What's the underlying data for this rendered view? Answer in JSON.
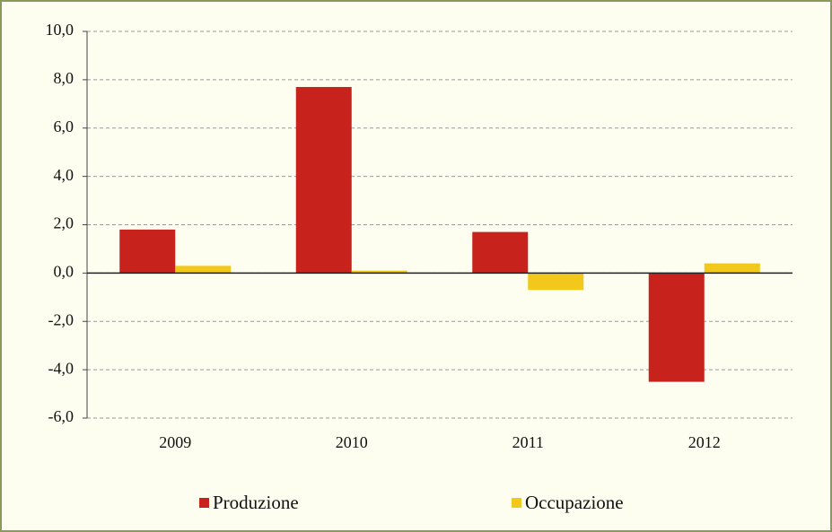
{
  "chart_data": {
    "type": "bar",
    "categories": [
      "2009",
      "2010",
      "2011",
      "2012"
    ],
    "series": [
      {
        "name": "Produzione",
        "color": "#c8221c",
        "values": [
          1.8,
          7.7,
          1.7,
          -4.5
        ]
      },
      {
        "name": "Occupazione",
        "color": "#f2c81c",
        "values": [
          0.3,
          0.1,
          -0.7,
          0.4
        ]
      }
    ],
    "ylim": [
      -6,
      10
    ],
    "yticks": [
      {
        "value": -6,
        "label": "-6,0"
      },
      {
        "value": -4,
        "label": "-4,0"
      },
      {
        "value": -2,
        "label": "-2,0"
      },
      {
        "value": 0,
        "label": "0,0"
      },
      {
        "value": 2,
        "label": "2,0"
      },
      {
        "value": 4,
        "label": "4,0"
      },
      {
        "value": 6,
        "label": "6,0"
      },
      {
        "value": 8,
        "label": "8,0"
      },
      {
        "value": 10,
        "label": "10,0"
      }
    ],
    "grid": true
  }
}
